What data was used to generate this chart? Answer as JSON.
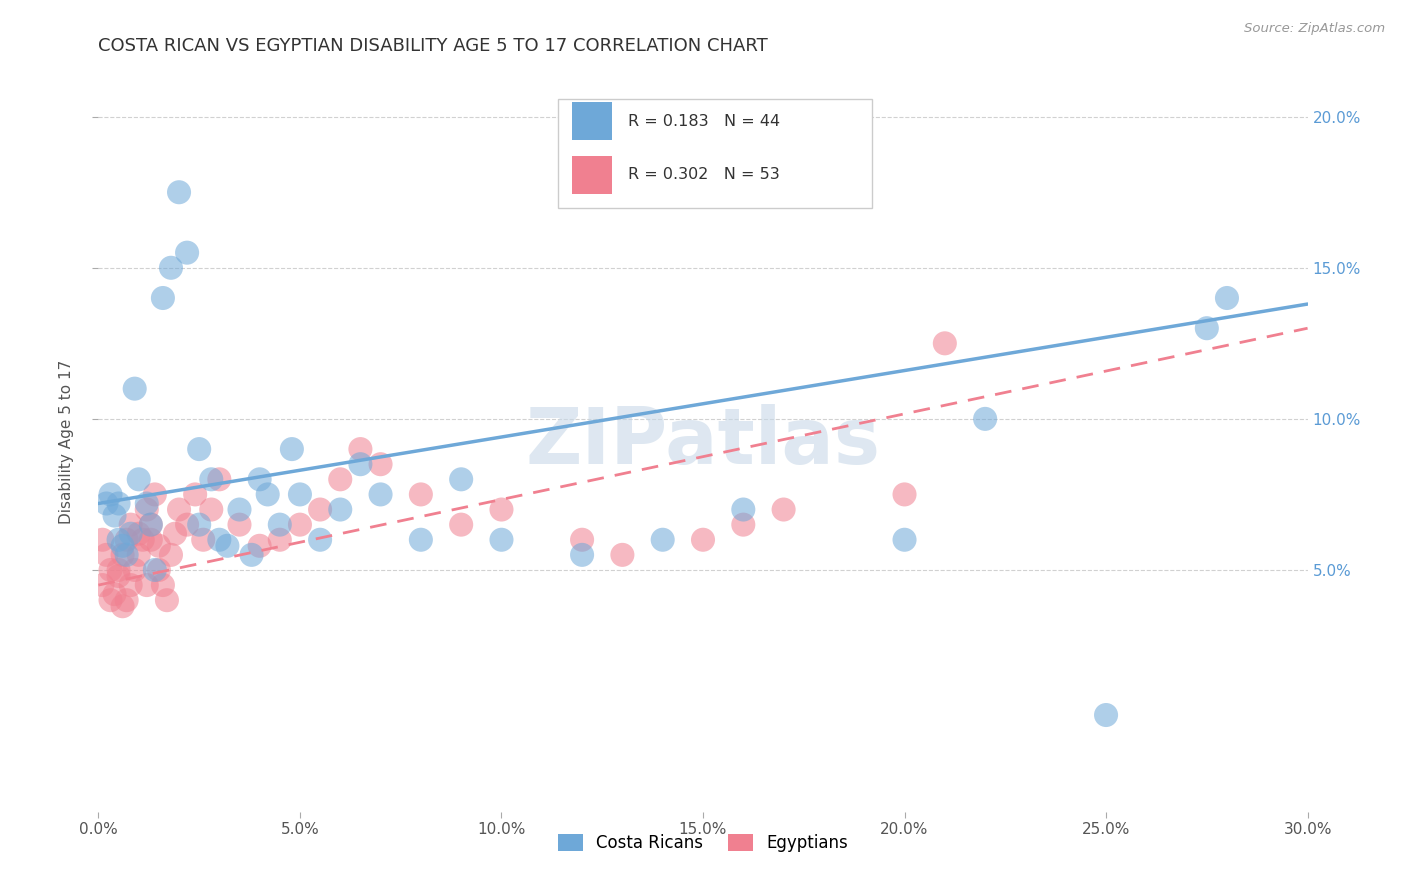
{
  "title": "COSTA RICAN VS EGYPTIAN DISABILITY AGE 5 TO 17 CORRELATION CHART",
  "source": "Source: ZipAtlas.com",
  "ylabel": "Disability Age 5 to 17",
  "xlim": [
    0.0,
    0.3
  ],
  "ylim": [
    -0.03,
    0.215
  ],
  "xtick_vals": [
    0.0,
    0.05,
    0.1,
    0.15,
    0.2,
    0.25,
    0.3
  ],
  "xtick_labels": [
    "0.0%",
    "5.0%",
    "10.0%",
    "15.0%",
    "20.0%",
    "25.0%",
    "30.0%"
  ],
  "ytick_vals": [
    0.05,
    0.1,
    0.15,
    0.2
  ],
  "ytick_labels": [
    "5.0%",
    "10.0%",
    "15.0%",
    "20.0%"
  ],
  "cr_color": "#6ea8d8",
  "eg_color": "#f08090",
  "cr_R": 0.183,
  "cr_N": 44,
  "eg_R": 0.302,
  "eg_N": 53,
  "legend_label_cr": "Costa Ricans",
  "legend_label_eg": "Egyptians",
  "cr_line_start_y": 0.072,
  "cr_line_end_y": 0.138,
  "eg_line_start_y": 0.045,
  "eg_line_end_y": 0.13,
  "cr_scatter_x": [
    0.002,
    0.003,
    0.004,
    0.005,
    0.005,
    0.006,
    0.007,
    0.008,
    0.009,
    0.01,
    0.012,
    0.013,
    0.014,
    0.016,
    0.018,
    0.02,
    0.022,
    0.025,
    0.025,
    0.028,
    0.03,
    0.032,
    0.035,
    0.038,
    0.04,
    0.042,
    0.045,
    0.048,
    0.05,
    0.055,
    0.06,
    0.065,
    0.07,
    0.08,
    0.09,
    0.1,
    0.12,
    0.14,
    0.16,
    0.2,
    0.22,
    0.25,
    0.275,
    0.28
  ],
  "cr_scatter_y": [
    0.072,
    0.075,
    0.068,
    0.072,
    0.06,
    0.058,
    0.055,
    0.062,
    0.11,
    0.08,
    0.072,
    0.065,
    0.05,
    0.14,
    0.15,
    0.175,
    0.155,
    0.09,
    0.065,
    0.08,
    0.06,
    0.058,
    0.07,
    0.055,
    0.08,
    0.075,
    0.065,
    0.09,
    0.075,
    0.06,
    0.07,
    0.085,
    0.075,
    0.06,
    0.08,
    0.06,
    0.055,
    0.06,
    0.07,
    0.06,
    0.1,
    0.002,
    0.13,
    0.14
  ],
  "eg_scatter_x": [
    0.001,
    0.001,
    0.002,
    0.003,
    0.003,
    0.004,
    0.005,
    0.005,
    0.006,
    0.006,
    0.007,
    0.007,
    0.008,
    0.008,
    0.009,
    0.01,
    0.01,
    0.011,
    0.012,
    0.012,
    0.013,
    0.013,
    0.014,
    0.015,
    0.015,
    0.016,
    0.017,
    0.018,
    0.019,
    0.02,
    0.022,
    0.024,
    0.026,
    0.028,
    0.03,
    0.035,
    0.04,
    0.045,
    0.05,
    0.055,
    0.06,
    0.065,
    0.07,
    0.08,
    0.09,
    0.1,
    0.12,
    0.13,
    0.15,
    0.16,
    0.17,
    0.2,
    0.21
  ],
  "eg_scatter_y": [
    0.045,
    0.06,
    0.055,
    0.05,
    0.04,
    0.042,
    0.048,
    0.05,
    0.038,
    0.055,
    0.04,
    0.06,
    0.045,
    0.065,
    0.05,
    0.055,
    0.062,
    0.06,
    0.045,
    0.07,
    0.06,
    0.065,
    0.075,
    0.058,
    0.05,
    0.045,
    0.04,
    0.055,
    0.062,
    0.07,
    0.065,
    0.075,
    0.06,
    0.07,
    0.08,
    0.065,
    0.058,
    0.06,
    0.065,
    0.07,
    0.08,
    0.09,
    0.085,
    0.075,
    0.065,
    0.07,
    0.06,
    0.055,
    0.06,
    0.065,
    0.07,
    0.075,
    0.125
  ],
  "background_color": "#ffffff",
  "grid_color": "#cccccc",
  "watermark_color": "#c8d8e8",
  "watermark_text": "ZIPatlas"
}
